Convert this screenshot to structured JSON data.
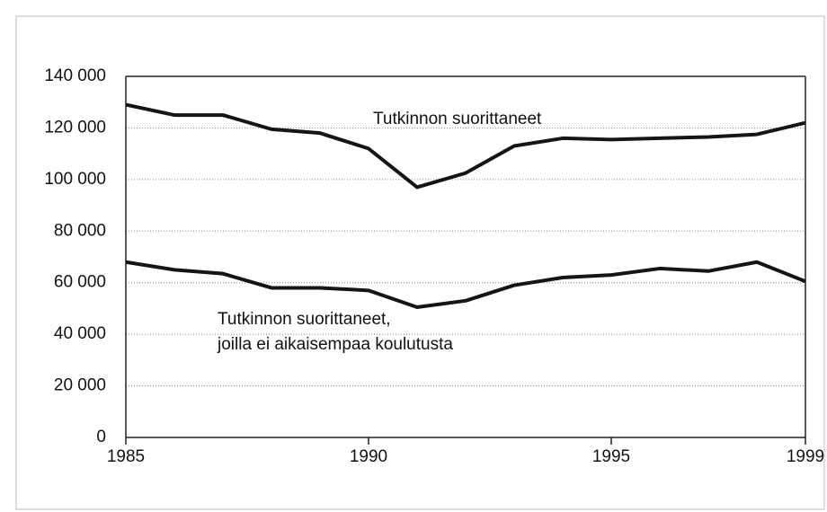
{
  "chart_data": {
    "type": "line",
    "x": [
      1985,
      1986,
      1987,
      1988,
      1989,
      1990,
      1991,
      1992,
      1993,
      1994,
      1995,
      1996,
      1997,
      1998,
      1999
    ],
    "series": [
      {
        "color": "#151515",
        "values": [
          129000,
          125000,
          125000,
          119500,
          118000,
          112000,
          97000,
          102500,
          113000,
          116000,
          115500,
          116000,
          116500,
          117500,
          122000
        ]
      },
      {
        "color": "#151515",
        "values": [
          68000,
          65000,
          63500,
          58000,
          58000,
          57000,
          50500,
          53000,
          59000,
          62000,
          63000,
          65500,
          64500,
          68000,
          60500
        ]
      }
    ],
    "annotations": [
      "Tutkinnon suorittaneet",
      "Tutkinnon suorittaneet,",
      "joilla ei aikaisempaa koulutusta"
    ],
    "xlim": [
      1985,
      1999
    ],
    "xticks": [
      1985,
      1990,
      1995,
      1999
    ],
    "ylim": [
      0,
      140000
    ],
    "yticks": [
      0,
      {
        "value": 20000,
        "label": "20 000"
      },
      {
        "value": 40000,
        "label": "40 000"
      },
      {
        "value": 60000,
        "label": "60 000"
      },
      {
        "value": 80000,
        "label": "80 000"
      },
      {
        "value": 100000,
        "label": "100 000"
      },
      {
        "value": 120000,
        "label": "120 000"
      },
      {
        "value": 140000,
        "label": "140 000"
      }
    ],
    "grid": true
  }
}
